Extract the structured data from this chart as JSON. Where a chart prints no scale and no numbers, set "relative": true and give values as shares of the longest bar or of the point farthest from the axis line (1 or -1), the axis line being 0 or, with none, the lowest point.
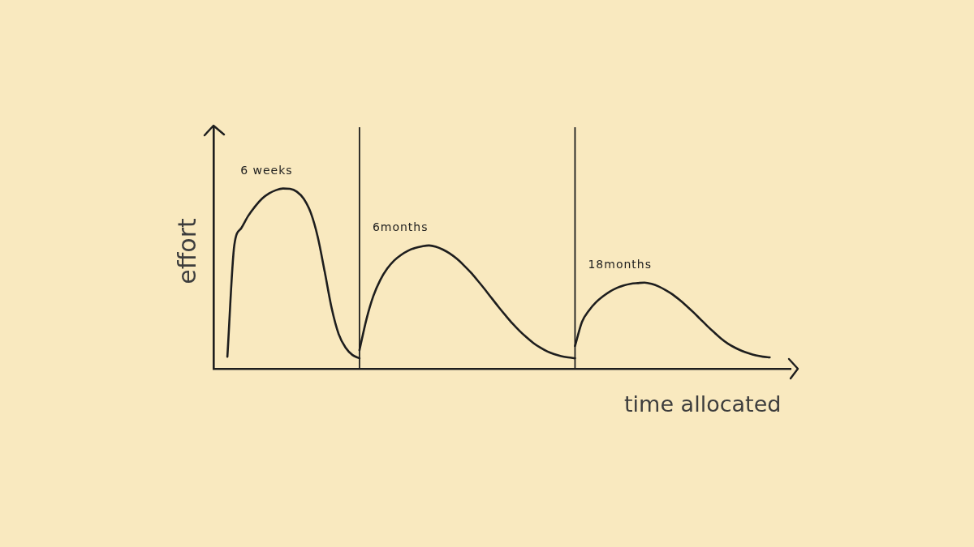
{
  "chart_data": {
    "type": "line",
    "relative": true,
    "xlabel": "time allocated",
    "ylabel": "effort",
    "legend": false,
    "marker": "none",
    "categories": [
      null,
      null,
      null,
      null,
      null,
      null,
      null,
      null,
      null,
      null,
      null,
      null,
      null,
      null,
      null,
      null,
      null,
      null,
      null,
      null,
      null,
      null,
      null,
      null,
      null,
      null,
      null,
      null,
      null,
      null,
      null,
      null,
      null,
      null,
      null,
      null,
      null,
      null,
      null,
      null,
      null,
      null,
      null,
      null,
      null,
      null,
      null,
      null,
      null,
      null,
      null,
      null,
      null,
      null,
      null,
      null,
      null,
      null,
      null,
      null,
      null,
      null,
      null,
      null,
      null,
      null,
      null,
      null,
      null,
      null,
      null,
      null,
      null,
      null,
      null,
      null,
      null,
      null,
      null,
      null,
      null,
      null,
      null,
      null
    ],
    "series": [
      {
        "name": "6 weeks",
        "color": "#1e1e1e",
        "values": [
          null,
          null,
          0.067,
          0.686,
          0.78,
          0.848,
          0.901,
          0.944,
          0.973,
          0.991,
          1,
          0.998,
          0.982,
          0.942,
          0.865,
          0.731,
          0.538,
          0.336,
          0.193,
          0.117,
          0.076,
          0.058,
          null,
          null,
          null,
          null,
          null,
          null,
          null,
          null,
          null,
          null,
          null,
          null,
          null,
          null,
          null,
          null,
          null,
          null,
          null,
          null,
          null,
          null,
          null,
          null,
          null,
          null,
          null,
          null,
          null,
          null,
          null,
          null,
          null,
          null,
          null,
          null,
          null,
          null,
          null,
          null,
          null,
          null,
          null,
          null,
          null,
          null,
          null,
          null,
          null,
          null,
          null,
          null,
          null,
          null,
          null,
          null,
          null,
          null,
          null,
          null,
          null,
          null
        ]
      },
      {
        "name": "6months",
        "color": "#1e1e1e",
        "values": [
          null,
          null,
          null,
          null,
          null,
          null,
          null,
          null,
          null,
          null,
          null,
          null,
          null,
          null,
          null,
          null,
          null,
          null,
          null,
          null,
          null,
          0.103,
          0.274,
          0.404,
          0.493,
          0.556,
          0.601,
          0.632,
          0.655,
          0.67,
          0.679,
          0.684,
          0.677,
          0.661,
          0.639,
          0.61,
          0.574,
          0.534,
          0.489,
          0.442,
          0.392,
          0.343,
          0.296,
          0.251,
          0.211,
          0.175,
          0.143,
          0.117,
          0.096,
          0.081,
          0.07,
          0.063,
          0.058,
          null,
          null,
          null,
          null,
          null,
          null,
          null,
          null,
          null,
          null,
          null,
          null,
          null,
          null,
          null,
          null,
          null,
          null,
          null,
          null,
          null,
          null,
          null,
          null,
          null,
          null,
          null,
          null,
          null,
          null,
          null
        ]
      },
      {
        "name": "18months",
        "color": "#1e1e1e",
        "values": [
          null,
          null,
          null,
          null,
          null,
          null,
          null,
          null,
          null,
          null,
          null,
          null,
          null,
          null,
          null,
          null,
          null,
          null,
          null,
          null,
          null,
          null,
          null,
          null,
          null,
          null,
          null,
          null,
          null,
          null,
          null,
          null,
          null,
          null,
          null,
          null,
          null,
          null,
          null,
          null,
          null,
          null,
          null,
          null,
          null,
          null,
          null,
          null,
          null,
          null,
          null,
          null,
          0.126,
          0.26,
          0.323,
          0.368,
          0.401,
          0.428,
          0.448,
          0.462,
          0.471,
          0.475,
          0.478,
          0.471,
          0.457,
          0.437,
          0.413,
          0.383,
          0.35,
          0.314,
          0.276,
          0.238,
          0.202,
          0.168,
          0.139,
          0.117,
          0.099,
          0.085,
          0.074,
          0.067,
          0.063,
          null,
          null,
          null
        ]
      }
    ]
  }
}
